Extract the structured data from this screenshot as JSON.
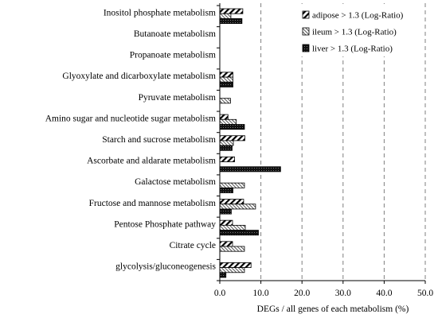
{
  "chart_data": {
    "type": "bar",
    "orientation": "horizontal",
    "categories": [
      "Inositol phosphate metabolism",
      "Butanoate metabolism",
      "Propanoate metabolism",
      "Glyoxylate and dicarboxylate metabolism",
      "Pyruvate metabolism",
      "Amino sugar and nucleotide sugar metabolism",
      "Starch and sucrose metabolism",
      "Ascorbate and aldarate metabolism",
      "Galactose metabolism",
      "Fructose and mannose metabolism",
      "Pentose Phosphate pathway",
      "Citrate cycle",
      "glycolysis/gluconeogenesis"
    ],
    "series": [
      {
        "name": "adipose > 1.3 (Log-Ratio)",
        "pattern": "diagonal",
        "values": [
          5.6,
          0,
          0,
          3.2,
          0,
          2.0,
          6.1,
          3.6,
          0,
          5.8,
          3.1,
          3.1,
          7.6
        ]
      },
      {
        "name": "ileum > 1.3 (Log-Ratio)",
        "pattern": "dense",
        "values": [
          2.7,
          0,
          0,
          3.2,
          2.6,
          4.0,
          3.3,
          0,
          6.0,
          8.7,
          6.2,
          6.0,
          6.0
        ]
      },
      {
        "name": "liver > 1.3 (Log-Ratio)",
        "pattern": "dark",
        "values": [
          5.4,
          0,
          0,
          3.2,
          0,
          6.0,
          3.0,
          14.8,
          3.2,
          2.8,
          9.4,
          0,
          1.5
        ]
      }
    ],
    "xlabel": "DEGs  / all genes of each metabolism (%)",
    "xlim": [
      0,
      50
    ],
    "xticks": [
      "0.0",
      "10.0",
      "20.0",
      "30.0",
      "40.0",
      "50.0"
    ],
    "grid": "vertical dashed",
    "legend_position": "top-right"
  }
}
